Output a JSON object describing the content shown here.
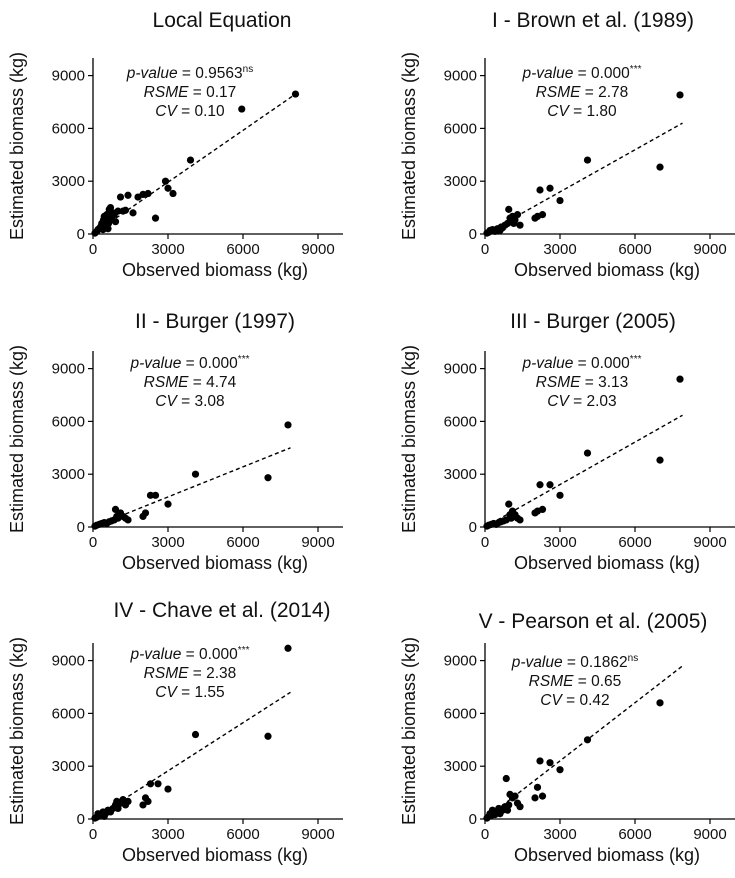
{
  "chart_data": [
    {
      "type": "scatter",
      "title": "Local Equation",
      "xlabel": "Observed biomass (kg)",
      "ylabel": "Estimated biomass (kg)",
      "xlim": [
        0,
        10000
      ],
      "ylim": [
        0,
        10000
      ],
      "xticks": [
        "0",
        "3000",
        "6000",
        "9000"
      ],
      "yticks": [
        "0",
        "3000",
        "6000",
        "9000"
      ],
      "stats": {
        "pvalue_label": "p-value",
        "pvalue_value": "0.9563",
        "pvalue_sig": "ns",
        "rsme_label": "RSME",
        "rsme_value": "0.17",
        "cv_label": "CV",
        "cv_value": "0.10"
      },
      "trend": {
        "x": [
          0,
          8100
        ],
        "y": [
          0,
          7950
        ]
      },
      "x": [
        80,
        150,
        200,
        250,
        300,
        350,
        400,
        420,
        450,
        480,
        500,
        520,
        550,
        600,
        620,
        650,
        700,
        720,
        750,
        800,
        850,
        900,
        1000,
        1100,
        1200,
        1300,
        1400,
        1600,
        1800,
        2000,
        2200,
        2500,
        2900,
        3000,
        3200,
        3900,
        5950,
        8100
      ],
      "y": [
        50,
        150,
        250,
        300,
        400,
        600,
        250,
        800,
        1000,
        700,
        500,
        900,
        1100,
        300,
        600,
        1400,
        1500,
        1000,
        800,
        1200,
        1100,
        700,
        1300,
        2100,
        1300,
        1350,
        2200,
        1200,
        2100,
        2250,
        2300,
        900,
        3000,
        2600,
        2300,
        4200,
        7100,
        7950
      ]
    },
    {
      "type": "scatter",
      "title": "I - Brown et al. (1989)",
      "xlabel": "Observed biomass (kg)",
      "ylabel": "Estimated biomass (kg)",
      "xlim": [
        0,
        10000
      ],
      "ylim": [
        0,
        10000
      ],
      "xticks": [
        "0",
        "3000",
        "6000",
        "9000"
      ],
      "yticks": [
        "0",
        "3000",
        "6000",
        "9000"
      ],
      "stats": {
        "pvalue_label": "p-value",
        "pvalue_value": "0.000",
        "pvalue_sig": "***",
        "rsme_label": "RSME",
        "rsme_value": "2.78",
        "cv_label": "CV",
        "cv_value": "1.80"
      },
      "trend": {
        "x": [
          0,
          7900
        ],
        "y": [
          0,
          6300
        ]
      },
      "x": [
        80,
        150,
        200,
        300,
        400,
        500,
        600,
        650,
        700,
        800,
        900,
        950,
        1000,
        1050,
        1100,
        1150,
        1200,
        1300,
        1400,
        2000,
        2100,
        2200,
        2300,
        2600,
        3000,
        4100,
        7000,
        7800
      ],
      "y": [
        50,
        100,
        200,
        250,
        150,
        300,
        200,
        400,
        350,
        500,
        600,
        1400,
        900,
        700,
        1000,
        600,
        800,
        1100,
        500,
        900,
        1000,
        2500,
        1100,
        2600,
        1900,
        4200,
        3800,
        7900
      ]
    },
    {
      "type": "scatter",
      "title": "II - Burger (1997)",
      "xlabel": "Observed biomass (kg)",
      "ylabel": "Estimated biomass (kg)",
      "xlim": [
        0,
        10000
      ],
      "ylim": [
        0,
        10000
      ],
      "xticks": [
        "0",
        "3000",
        "6000",
        "9000"
      ],
      "yticks": [
        "0",
        "3000",
        "6000",
        "9000"
      ],
      "stats": {
        "pvalue_label": "p-value",
        "pvalue_value": "0.000",
        "pvalue_sig": "***",
        "rsme_label": "RSME",
        "rsme_value": "4.74",
        "cv_label": "CV",
        "cv_value": "3.08"
      },
      "trend": {
        "x": [
          0,
          7900
        ],
        "y": [
          0,
          4500
        ]
      },
      "x": [
        80,
        150,
        250,
        350,
        450,
        550,
        650,
        750,
        850,
        900,
        950,
        1000,
        1050,
        1100,
        1200,
        1300,
        1400,
        2000,
        2100,
        2300,
        2500,
        3000,
        4100,
        7000,
        7800
      ],
      "y": [
        50,
        100,
        150,
        200,
        250,
        200,
        300,
        350,
        400,
        1000,
        600,
        500,
        700,
        800,
        600,
        500,
        400,
        600,
        800,
        1800,
        1800,
        1300,
        3000,
        2800,
        5800
      ]
    },
    {
      "type": "scatter",
      "title": "III - Burger (2005)",
      "xlabel": "Observed biomass (kg)",
      "ylabel": "Estimated biomass (kg)",
      "xlim": [
        0,
        10000
      ],
      "ylim": [
        0,
        10000
      ],
      "xticks": [
        "0",
        "3000",
        "6000",
        "9000"
      ],
      "yticks": [
        "0",
        "3000",
        "6000",
        "9000"
      ],
      "stats": {
        "pvalue_label": "p-value",
        "pvalue_value": "0.000",
        "pvalue_sig": "***",
        "rsme_label": "RSME",
        "rsme_value": "3.13",
        "cv_label": "CV",
        "cv_value": "2.03"
      },
      "trend": {
        "x": [
          0,
          7900
        ],
        "y": [
          0,
          6350
        ]
      },
      "x": [
        80,
        150,
        250,
        350,
        450,
        550,
        650,
        750,
        850,
        950,
        1000,
        1050,
        1100,
        1200,
        1300,
        1400,
        2000,
        2100,
        2200,
        2300,
        2600,
        3000,
        4100,
        7000,
        7800
      ],
      "y": [
        50,
        100,
        150,
        200,
        150,
        250,
        300,
        350,
        400,
        1300,
        700,
        500,
        900,
        700,
        500,
        400,
        800,
        900,
        2400,
        1000,
        2400,
        1800,
        4200,
        3800,
        8400
      ]
    },
    {
      "type": "scatter",
      "title": "IV - Chave et al. (2014)",
      "xlabel": "Observed biomass (kg)",
      "ylabel": "Estimated biomass (kg)",
      "xlim": [
        0,
        10000
      ],
      "ylim": [
        0,
        10000
      ],
      "xticks": [
        "0",
        "3000",
        "6000",
        "9000"
      ],
      "yticks": [
        "0",
        "3000",
        "6000",
        "9000"
      ],
      "stats": {
        "pvalue_label": "p-value",
        "pvalue_value": "0.000",
        "pvalue_sig": "***",
        "rsme_label": "RSME",
        "rsme_value": "2.38",
        "cv_label": "CV",
        "cv_value": "1.55"
      },
      "trend": {
        "x": [
          0,
          7900
        ],
        "y": [
          0,
          7200
        ]
      },
      "x": [
        80,
        150,
        200,
        300,
        400,
        450,
        500,
        600,
        700,
        800,
        900,
        950,
        1000,
        1100,
        1200,
        1300,
        1400,
        2000,
        2100,
        2200,
        2300,
        2600,
        3000,
        4100,
        7000,
        7800
      ],
      "y": [
        50,
        100,
        300,
        200,
        400,
        150,
        300,
        500,
        400,
        600,
        800,
        1000,
        600,
        900,
        1100,
        800,
        1000,
        800,
        1200,
        1000,
        2000,
        2000,
        1700,
        4800,
        4700,
        9700
      ]
    },
    {
      "type": "scatter",
      "title": "V - Pearson et al. (2005)",
      "xlabel": "Observed biomass (kg)",
      "ylabel": "Estimated biomass (kg)",
      "xlim": [
        0,
        10000
      ],
      "ylim": [
        0,
        10000
      ],
      "xticks": [
        "0",
        "3000",
        "6000",
        "9000"
      ],
      "yticks": [
        "0",
        "3000",
        "6000",
        "9000"
      ],
      "stats": {
        "pvalue_label": "p-value",
        "pvalue_value": "0.1862",
        "pvalue_sig": "ns",
        "rsme_label": "RSME",
        "rsme_value": "0.65",
        "cv_label": "CV",
        "cv_value": "0.42"
      },
      "trend": {
        "x": [
          0,
          7900
        ],
        "y": [
          0,
          8700
        ]
      },
      "x": [
        80,
        150,
        200,
        250,
        300,
        350,
        400,
        500,
        550,
        600,
        650,
        700,
        800,
        850,
        900,
        950,
        1000,
        1100,
        1200,
        1300,
        1400,
        2000,
        2100,
        2200,
        2300,
        2600,
        3000,
        4100,
        7000
      ],
      "y": [
        50,
        150,
        300,
        200,
        500,
        400,
        250,
        350,
        600,
        300,
        450,
        500,
        700,
        2300,
        500,
        800,
        1400,
        1200,
        1300,
        900,
        700,
        1200,
        1800,
        3300,
        1300,
        3200,
        2800,
        4500,
        6600
      ]
    }
  ]
}
